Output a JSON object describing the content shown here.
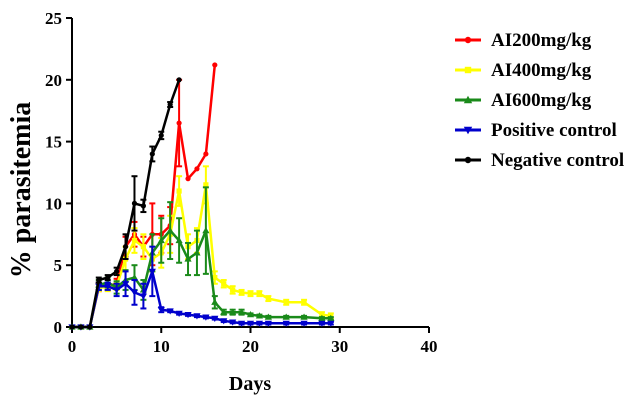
{
  "chart_data": {
    "type": "line",
    "title": "",
    "xlabel": "Days",
    "ylabel": "% parasitemia",
    "xlim": [
      0,
      40
    ],
    "ylim": [
      0,
      25
    ],
    "x_ticks": [
      "0",
      "10",
      "20",
      "30",
      "40"
    ],
    "y_ticks": [
      "0",
      "5",
      "10",
      "15",
      "20",
      "25"
    ],
    "grid": false,
    "legend_position": "right",
    "series": [
      {
        "name": "AI200mg/kg",
        "color": "#ff0000",
        "marker": "circle",
        "points": [
          [
            0,
            0
          ],
          [
            1,
            0
          ],
          [
            2,
            0
          ],
          [
            3,
            3.2
          ],
          [
            4,
            3.3
          ],
          [
            5,
            3.5
          ],
          [
            6,
            6.5
          ],
          [
            7,
            7.5
          ],
          [
            8,
            6.5
          ],
          [
            9,
            7.5
          ],
          [
            10,
            7.5
          ],
          [
            11,
            8.2
          ],
          [
            12,
            16.5
          ],
          [
            13,
            12.0
          ],
          [
            14,
            12.8
          ],
          [
            15,
            14.0
          ],
          [
            16,
            21.2
          ]
        ],
        "errors": [
          0,
          0,
          0,
          0.3,
          0.3,
          0.4,
          0.8,
          1.0,
          0.8,
          2.5,
          1.5,
          1.5,
          3.5,
          0,
          0,
          0,
          0
        ]
      },
      {
        "name": "AI400mg/kg",
        "color": "#ffff00",
        "marker": "square",
        "points": [
          [
            0,
            0
          ],
          [
            1,
            0
          ],
          [
            2,
            0
          ],
          [
            3,
            3.2
          ],
          [
            4,
            3.2
          ],
          [
            5,
            3.3
          ],
          [
            6,
            5.5
          ],
          [
            7,
            7.0
          ],
          [
            8,
            6.5
          ],
          [
            9,
            5.5
          ],
          [
            10,
            6.0
          ],
          [
            11,
            7.5
          ],
          [
            12,
            11.0
          ],
          [
            13,
            6.5
          ],
          [
            14,
            7.0
          ],
          [
            15,
            11.5
          ],
          [
            16,
            4.0
          ],
          [
            17,
            3.5
          ],
          [
            18,
            3.0
          ],
          [
            19,
            2.8
          ],
          [
            20,
            2.7
          ],
          [
            21,
            2.7
          ],
          [
            22,
            2.3
          ],
          [
            24,
            2.0
          ],
          [
            26,
            2.0
          ],
          [
            28,
            1.0
          ],
          [
            29,
            0.9
          ]
        ],
        "errors": [
          0,
          0,
          0,
          0.3,
          0.3,
          0.3,
          1.0,
          1.0,
          1.0,
          1.0,
          1.2,
          1.5,
          1.2,
          1.0,
          1.0,
          1.5,
          0.5,
          0.3,
          0.3,
          0.2,
          0.2,
          0.2,
          0.2,
          0.2,
          0.2,
          0.2,
          0.2
        ]
      },
      {
        "name": "AI600mg/kg",
        "color": "#1a8a1a",
        "marker": "triangle-up",
        "points": [
          [
            0,
            0
          ],
          [
            1,
            0
          ],
          [
            2,
            0
          ],
          [
            3,
            3.4
          ],
          [
            4,
            3.6
          ],
          [
            5,
            3.2
          ],
          [
            6,
            3.8
          ],
          [
            7,
            4.0
          ],
          [
            8,
            3.0
          ],
          [
            9,
            6.0
          ],
          [
            10,
            7.0
          ],
          [
            11,
            7.8
          ],
          [
            12,
            7.0
          ],
          [
            13,
            5.5
          ],
          [
            14,
            6.0
          ],
          [
            15,
            7.8
          ],
          [
            16,
            2.0
          ],
          [
            17,
            1.2
          ],
          [
            18,
            1.2
          ],
          [
            19,
            1.2
          ],
          [
            20,
            1.0
          ],
          [
            21,
            0.9
          ],
          [
            22,
            0.8
          ],
          [
            24,
            0.8
          ],
          [
            26,
            0.8
          ],
          [
            28,
            0.7
          ],
          [
            29,
            0.7
          ]
        ],
        "errors": [
          0,
          0,
          0,
          0.4,
          0.4,
          0.5,
          0.8,
          1.0,
          0.8,
          1.5,
          1.8,
          2.3,
          1.8,
          1.3,
          1.8,
          3.5,
          0.5,
          0.2,
          0.2,
          0.2,
          0.1,
          0.1,
          0.1,
          0.1,
          0.1,
          0.1,
          0.1
        ]
      },
      {
        "name": "Positive control",
        "color": "#0000cc",
        "marker": "triangle-down",
        "points": [
          [
            0,
            0
          ],
          [
            1,
            0
          ],
          [
            2,
            0
          ],
          [
            3,
            3.3
          ],
          [
            4,
            3.3
          ],
          [
            5,
            3.0
          ],
          [
            6,
            3.5
          ],
          [
            7,
            2.8
          ],
          [
            8,
            2.5
          ],
          [
            9,
            4.5
          ],
          [
            10,
            1.4
          ],
          [
            11,
            1.3
          ],
          [
            12,
            1.1
          ],
          [
            13,
            1.0
          ],
          [
            14,
            0.9
          ],
          [
            15,
            0.8
          ],
          [
            16,
            0.7
          ],
          [
            17,
            0.5
          ],
          [
            18,
            0.4
          ],
          [
            19,
            0.3
          ],
          [
            20,
            0.3
          ],
          [
            21,
            0.3
          ],
          [
            22,
            0.3
          ],
          [
            24,
            0.3
          ],
          [
            26,
            0.3
          ],
          [
            28,
            0.3
          ],
          [
            29,
            0.3
          ]
        ],
        "errors": [
          0,
          0,
          0,
          0.3,
          0.3,
          0.5,
          1.0,
          1.0,
          1.0,
          2.0,
          0.2,
          0.1,
          0.1,
          0.1,
          0.1,
          0.1,
          0.1,
          0.1,
          0.1,
          0.1,
          0.1,
          0.1,
          0.1,
          0.1,
          0.1,
          0.1,
          0.1
        ]
      },
      {
        "name": "Negative control",
        "color": "#000000",
        "marker": "circle",
        "points": [
          [
            0,
            0
          ],
          [
            1,
            0
          ],
          [
            2,
            0
          ],
          [
            3,
            3.8
          ],
          [
            4,
            4.0
          ],
          [
            5,
            4.5
          ],
          [
            6,
            6.5
          ],
          [
            7,
            10.0
          ],
          [
            8,
            9.8
          ],
          [
            9,
            14.0
          ],
          [
            10,
            15.5
          ],
          [
            11,
            18.0
          ],
          [
            12,
            20.0
          ]
        ],
        "errors": [
          0,
          0,
          0,
          0.2,
          0.2,
          0.3,
          1.0,
          2.2,
          0.5,
          0.6,
          0.3,
          0.2,
          0
        ]
      }
    ]
  }
}
